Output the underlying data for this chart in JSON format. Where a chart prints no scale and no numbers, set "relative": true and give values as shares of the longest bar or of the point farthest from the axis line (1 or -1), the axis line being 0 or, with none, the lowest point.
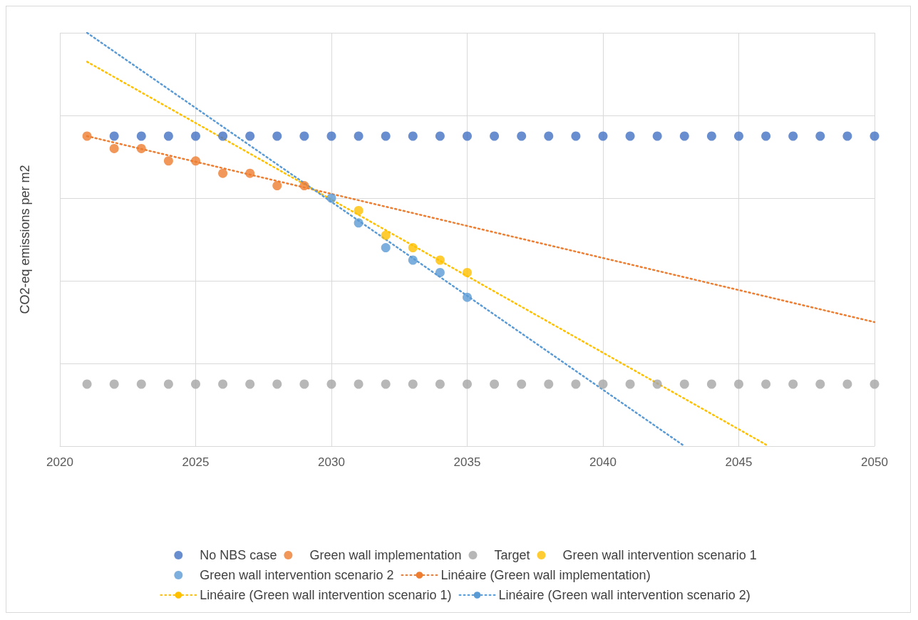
{
  "chart_data": {
    "type": "scatter",
    "relative": true,
    "ylabel": "CO2-eq emissions per m2",
    "xlim": [
      2020,
      2050
    ],
    "xticks": [
      2020,
      2025,
      2030,
      2035,
      2040,
      2045,
      2050
    ],
    "grid": true,
    "legend": "bottom",
    "marker": "circle",
    "series": [
      {
        "name": "No NBS case",
        "color": "#4472c4",
        "x": [
          2022,
          2023,
          2024,
          2025,
          2026,
          2027,
          2028,
          2029,
          2030,
          2031,
          2032,
          2033,
          2034,
          2035,
          2036,
          2037,
          2038,
          2039,
          2040,
          2041,
          2042,
          2043,
          2044,
          2045,
          2046,
          2047,
          2048,
          2049,
          2050
        ],
        "values": [
          0.75,
          0.75,
          0.75,
          0.75,
          0.75,
          0.75,
          0.75,
          0.75,
          0.75,
          0.75,
          0.75,
          0.75,
          0.75,
          0.75,
          0.75,
          0.75,
          0.75,
          0.75,
          0.75,
          0.75,
          0.75,
          0.75,
          0.75,
          0.75,
          0.75,
          0.75,
          0.75,
          0.75,
          0.75
        ]
      },
      {
        "name": "Green wall implementation",
        "color": "#ed7d31",
        "x": [
          2021,
          2022,
          2023,
          2024,
          2025,
          2026,
          2027,
          2028,
          2029
        ],
        "values": [
          0.75,
          0.72,
          0.72,
          0.69,
          0.69,
          0.66,
          0.66,
          0.63,
          0.63
        ]
      },
      {
        "name": "Target",
        "color": "#a5a5a5",
        "x": [
          2021,
          2022,
          2023,
          2024,
          2025,
          2026,
          2027,
          2028,
          2029,
          2030,
          2031,
          2032,
          2033,
          2034,
          2035,
          2036,
          2037,
          2038,
          2039,
          2040,
          2041,
          2042,
          2043,
          2044,
          2045,
          2046,
          2047,
          2048,
          2049,
          2050
        ],
        "values": [
          0.15,
          0.15,
          0.15,
          0.15,
          0.15,
          0.15,
          0.15,
          0.15,
          0.15,
          0.15,
          0.15,
          0.15,
          0.15,
          0.15,
          0.15,
          0.15,
          0.15,
          0.15,
          0.15,
          0.15,
          0.15,
          0.15,
          0.15,
          0.15,
          0.15,
          0.15,
          0.15,
          0.15,
          0.15,
          0.15
        ]
      },
      {
        "name": "Green wall intervention scenario 1",
        "color": "#ffc000",
        "x": [
          2031,
          2032,
          2033,
          2034,
          2035
        ],
        "values": [
          0.57,
          0.51,
          0.48,
          0.45,
          0.42
        ]
      },
      {
        "name": "Green wall intervention scenario 2",
        "color": "#5b9bd5",
        "x": [
          2030,
          2031,
          2032,
          2033,
          2034,
          2035
        ],
        "values": [
          0.6,
          0.54,
          0.48,
          0.45,
          0.42,
          0.36
        ]
      },
      {
        "name": "Linéaire (Green wall implementation)",
        "type": "line",
        "line_style": "dotted",
        "marker": "none",
        "color": "#ed7d31",
        "x": [
          2021,
          2050
        ],
        "values": [
          0.75,
          0.3
        ]
      },
      {
        "name": "Linéaire (Green wall intervention scenario 1)",
        "type": "line",
        "line_style": "dotted",
        "marker": "none",
        "color": "#ffc000",
        "x": [
          2021,
          2046.1
        ],
        "values": [
          0.93,
          0
        ]
      },
      {
        "name": "Linéaire (Green wall intervention scenario 2)",
        "type": "line",
        "line_style": "dotted",
        "marker": "none",
        "color": "#5b9bd5",
        "x": [
          2021,
          2043
        ],
        "values": [
          1,
          0
        ]
      }
    ]
  }
}
